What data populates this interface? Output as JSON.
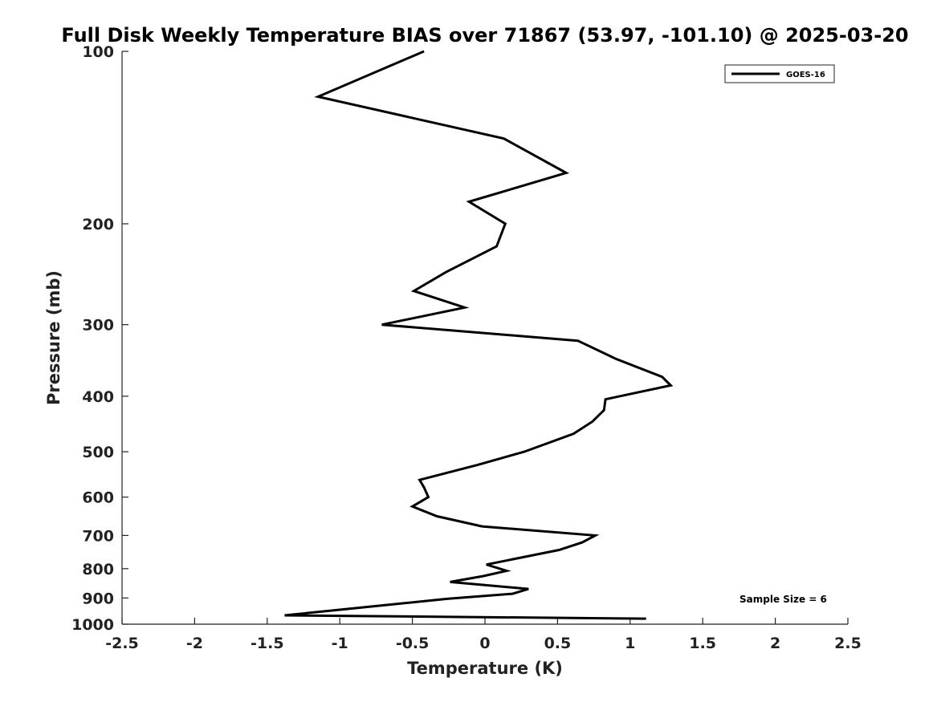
{
  "chart_data": {
    "type": "line",
    "title": "Full Disk Weekly Temperature BIAS over 71867 (53.97, -101.10) @ 2025-03-20",
    "xlabel": "Temperature (K)",
    "ylabel": "Pressure (mb)",
    "xlim": [
      -2.5,
      2.5
    ],
    "ylim": [
      1000,
      100
    ],
    "yscale": "log",
    "x_ticks": [
      -2.5,
      -2,
      -1.5,
      -1,
      -0.5,
      0,
      0.5,
      1,
      1.5,
      2,
      2.5
    ],
    "x_tick_labels": [
      "-2.5",
      "-2",
      "-1.5",
      "-1",
      "-0.5",
      "0",
      "0.5",
      "1",
      "1.5",
      "2",
      "2.5"
    ],
    "y_ticks": [
      100,
      200,
      300,
      400,
      500,
      600,
      700,
      800,
      900,
      1000
    ],
    "y_tick_labels": [
      "100",
      "200",
      "300",
      "400",
      "500",
      "600",
      "700",
      "800",
      "900",
      "1000"
    ],
    "grid": false,
    "legend_position": "top-right",
    "series": [
      {
        "name": "GOES-16",
        "color": "#000000",
        "points": [
          {
            "x": -0.42,
            "y": 100
          },
          {
            "x": -1.15,
            "y": 120
          },
          {
            "x": 0.13,
            "y": 142
          },
          {
            "x": 0.56,
            "y": 163
          },
          {
            "x": -0.11,
            "y": 183
          },
          {
            "x": 0.14,
            "y": 200
          },
          {
            "x": 0.08,
            "y": 219
          },
          {
            "x": -0.27,
            "y": 243
          },
          {
            "x": -0.49,
            "y": 262
          },
          {
            "x": -0.14,
            "y": 280
          },
          {
            "x": -0.71,
            "y": 300
          },
          {
            "x": 0.64,
            "y": 320
          },
          {
            "x": 0.9,
            "y": 344
          },
          {
            "x": 1.22,
            "y": 370
          },
          {
            "x": 1.28,
            "y": 383
          },
          {
            "x": 0.83,
            "y": 405
          },
          {
            "x": 0.82,
            "y": 423
          },
          {
            "x": 0.74,
            "y": 443
          },
          {
            "x": 0.61,
            "y": 465
          },
          {
            "x": 0.27,
            "y": 500
          },
          {
            "x": -0.05,
            "y": 527
          },
          {
            "x": -0.45,
            "y": 560
          },
          {
            "x": -0.42,
            "y": 577
          },
          {
            "x": -0.39,
            "y": 600
          },
          {
            "x": -0.5,
            "y": 623
          },
          {
            "x": -0.33,
            "y": 648
          },
          {
            "x": -0.02,
            "y": 675
          },
          {
            "x": 0.76,
            "y": 700
          },
          {
            "x": 0.67,
            "y": 720
          },
          {
            "x": 0.51,
            "y": 742
          },
          {
            "x": 0.01,
            "y": 787
          },
          {
            "x": 0.15,
            "y": 807
          },
          {
            "x": -0.01,
            "y": 824
          },
          {
            "x": -0.24,
            "y": 844
          },
          {
            "x": 0.3,
            "y": 868
          },
          {
            "x": 0.19,
            "y": 885
          },
          {
            "x": -0.26,
            "y": 903
          },
          {
            "x": -1.38,
            "y": 965
          },
          {
            "x": 1.11,
            "y": 978
          }
        ]
      }
    ],
    "annotation": "Sample Size = 6"
  }
}
